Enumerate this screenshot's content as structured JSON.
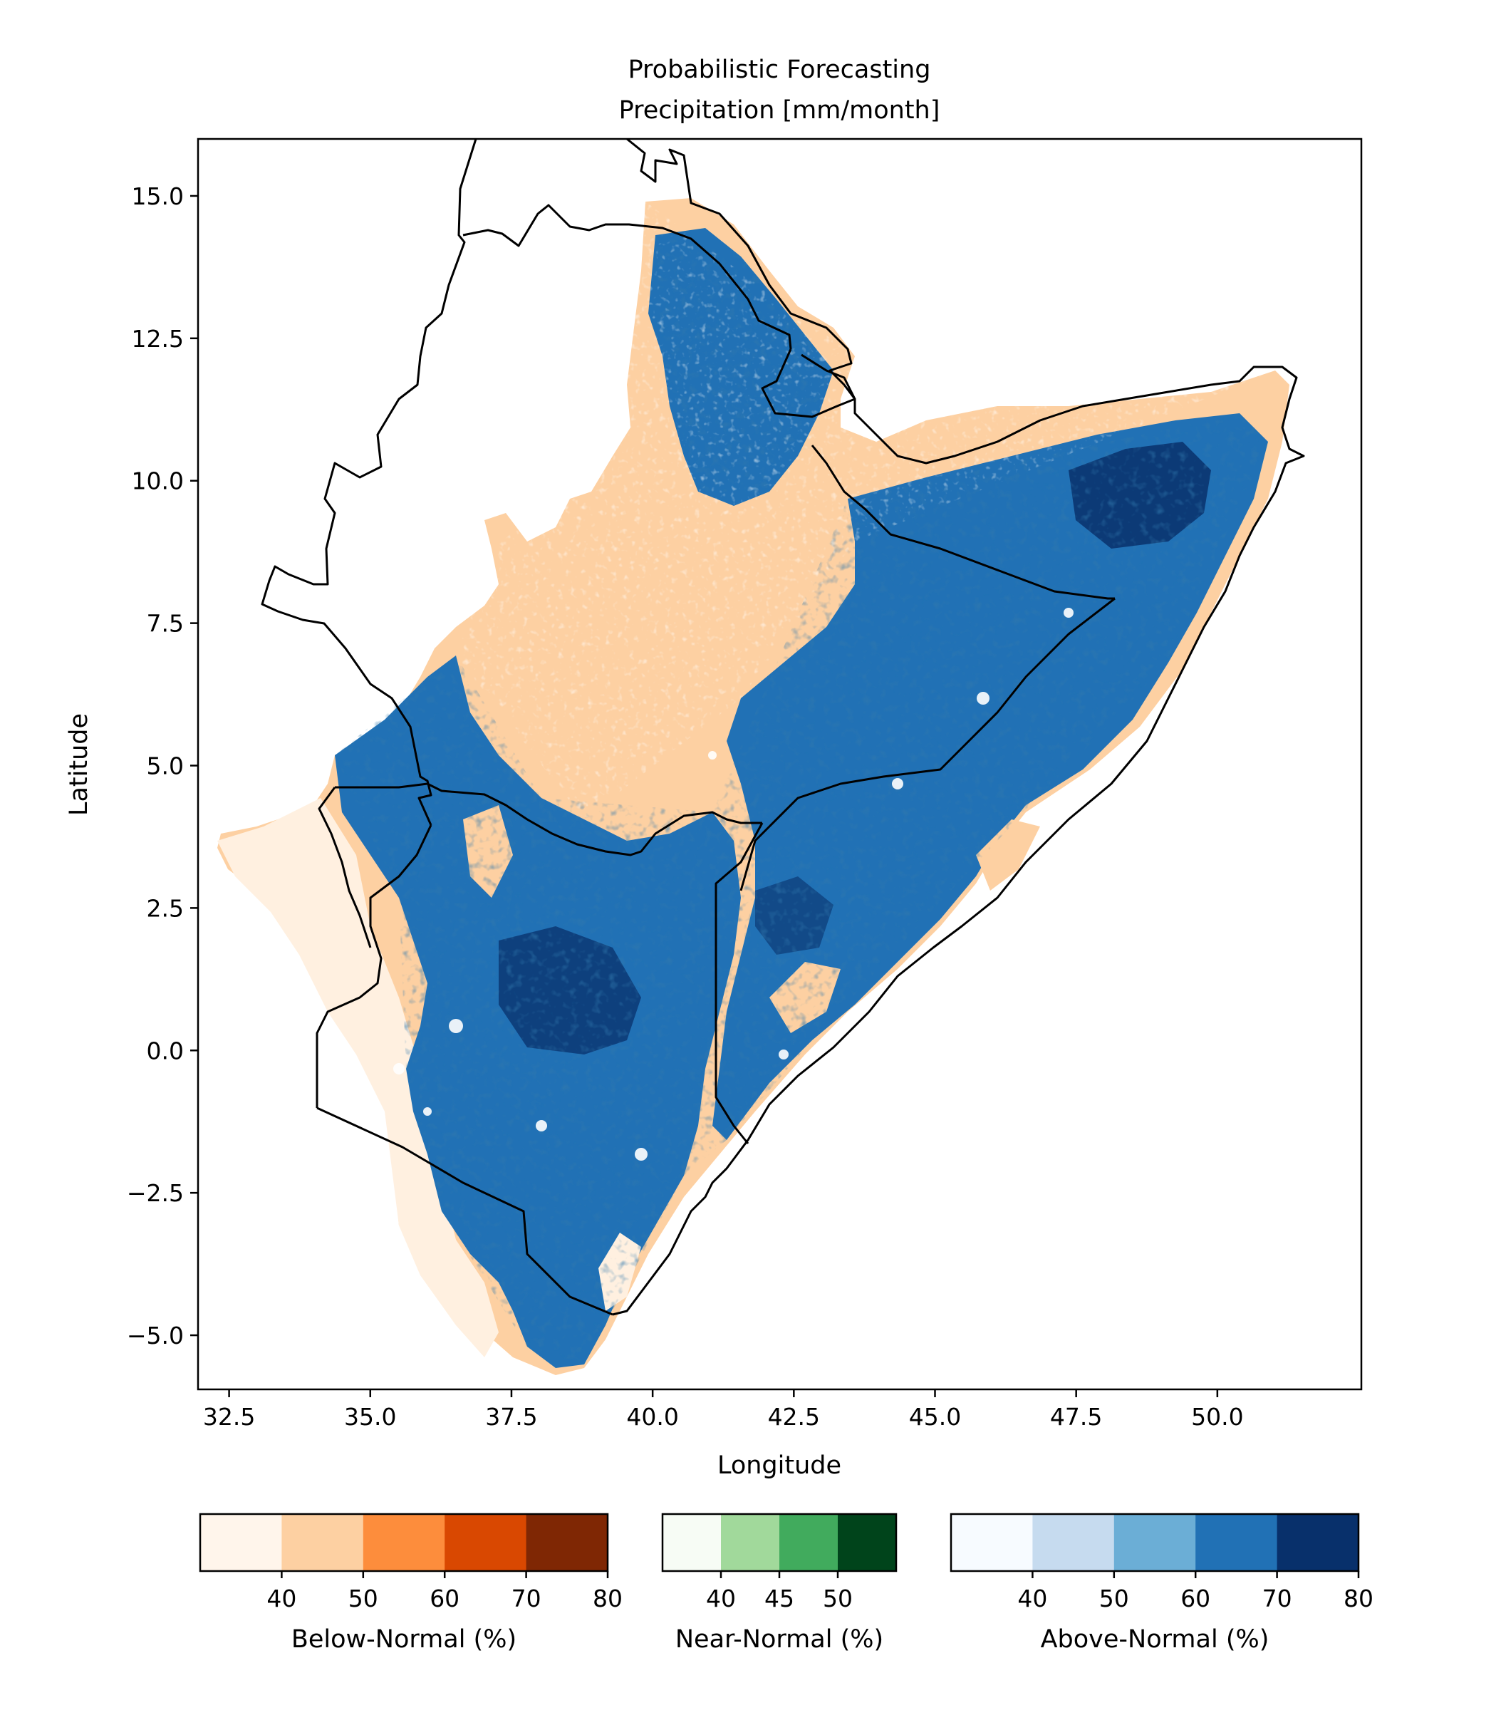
{
  "title": {
    "line1": "Probabilistic Forecasting",
    "line2": "Precipitation [mm/month]"
  },
  "map": {
    "xlabel": "Longitude",
    "ylabel": "Latitude",
    "xlim": [
      31.95,
      52.55
    ],
    "ylim": [
      -5.95,
      16.0
    ],
    "x_ticks": [
      {
        "value": 32.5,
        "label": "32.5"
      },
      {
        "value": 35.0,
        "label": "35.0"
      },
      {
        "value": 37.5,
        "label": "37.5"
      },
      {
        "value": 40.0,
        "label": "40.0"
      },
      {
        "value": 42.5,
        "label": "42.5"
      },
      {
        "value": 45.0,
        "label": "45.0"
      },
      {
        "value": 47.5,
        "label": "47.5"
      },
      {
        "value": 50.0,
        "label": "50.0"
      }
    ],
    "y_ticks": [
      {
        "value": 15.0,
        "label": "15.0"
      },
      {
        "value": 12.5,
        "label": "12.5"
      },
      {
        "value": 10.0,
        "label": "10.0"
      },
      {
        "value": 7.5,
        "label": "7.5"
      },
      {
        "value": 5.0,
        "label": "5.0"
      },
      {
        "value": 2.5,
        "label": "2.5"
      },
      {
        "value": 0.0,
        "label": "0.0"
      },
      {
        "value": -2.5,
        "label": "−2.5"
      },
      {
        "value": -5.0,
        "label": "−5.0"
      }
    ]
  },
  "colorbars": [
    {
      "id": "below",
      "label": "Below-Normal (%)",
      "colors": [
        "#fff5eb",
        "#fdd0a2",
        "#fd8d3c",
        "#d94801",
        "#7f2704"
      ],
      "ticks": [
        "40",
        "50",
        "60",
        "70",
        "80"
      ]
    },
    {
      "id": "near",
      "label": "Near-Normal (%)",
      "colors": [
        "#f7fcf5",
        "#a1d99b",
        "#41ab5d",
        "#00441b"
      ],
      "ticks": [
        "40",
        "45",
        "50"
      ]
    },
    {
      "id": "above",
      "label": "Above-Normal (%)",
      "colors": [
        "#f7fbff",
        "#c6dbef",
        "#6baed6",
        "#2171b5",
        "#08306b"
      ],
      "ticks": [
        "40",
        "50",
        "60",
        "70",
        "80"
      ]
    }
  ]
}
